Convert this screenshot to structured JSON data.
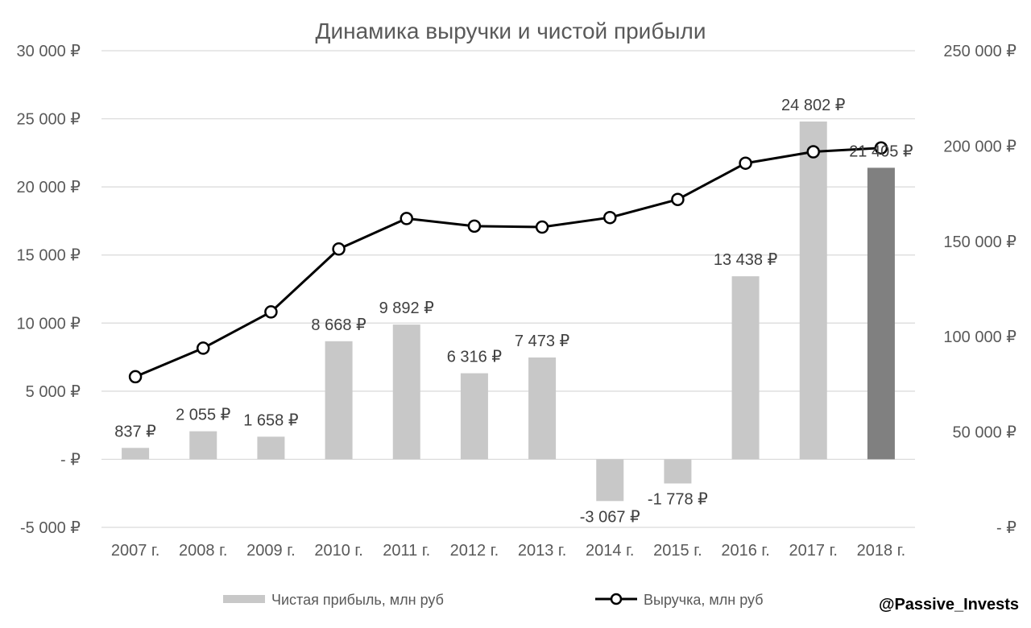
{
  "chart_data": {
    "type": "bar",
    "title": "Динамика выручки и чистой прибыли",
    "categories": [
      "2007 г.",
      "2008 г.",
      "2009 г.",
      "2010 г.",
      "2011 г.",
      "2012 г.",
      "2013 г.",
      "2014 г.",
      "2015 г.",
      "2016 г.",
      "2017 г.",
      "2018 г."
    ],
    "series": [
      {
        "name": "Чистая прибыль, млн руб",
        "type": "bar",
        "axis": "left",
        "values": [
          837,
          2055,
          1658,
          8668,
          9892,
          6316,
          7473,
          -3067,
          -1778,
          13438,
          24802,
          21405
        ],
        "labels": [
          "837 ₽",
          "2 055 ₽",
          "1 658 ₽",
          "8 668 ₽",
          "9 892 ₽",
          "6 316 ₽",
          "7 473 ₽",
          "-3 067 ₽",
          "-1 778 ₽",
          "13 438 ₽",
          "24 802 ₽",
          "21 405 ₽"
        ],
        "color": "#c8c8c8",
        "highlight_color": "#808080",
        "highlight_index": 11
      },
      {
        "name": "Выручка, млн руб",
        "type": "line",
        "axis": "right",
        "values": [
          79000,
          94000,
          113000,
          146000,
          162000,
          158000,
          157500,
          162500,
          172000,
          191000,
          197000,
          199000
        ],
        "color": "#000000",
        "marker": "circle-open"
      }
    ],
    "left_axis": {
      "ylim": [
        -5000,
        30000
      ],
      "ticks": [
        -5000,
        0,
        5000,
        10000,
        15000,
        20000,
        25000,
        30000
      ],
      "tick_labels": [
        "-5 000 ₽",
        "-  ₽",
        "5 000 ₽",
        "10 000 ₽",
        "15 000 ₽",
        "20 000 ₽",
        "25 000 ₽",
        "30 000 ₽"
      ]
    },
    "right_axis": {
      "ylim": [
        0,
        250000
      ],
      "ticks": [
        0,
        50000,
        100000,
        150000,
        200000,
        250000
      ],
      "tick_labels": [
        "-  ₽",
        "50 000 ₽",
        "100 000 ₽",
        "150 000 ₽",
        "200 000 ₽",
        "250 000 ₽"
      ]
    },
    "grid": true,
    "legend": "bottom"
  },
  "watermark": "@Passive_Invests"
}
